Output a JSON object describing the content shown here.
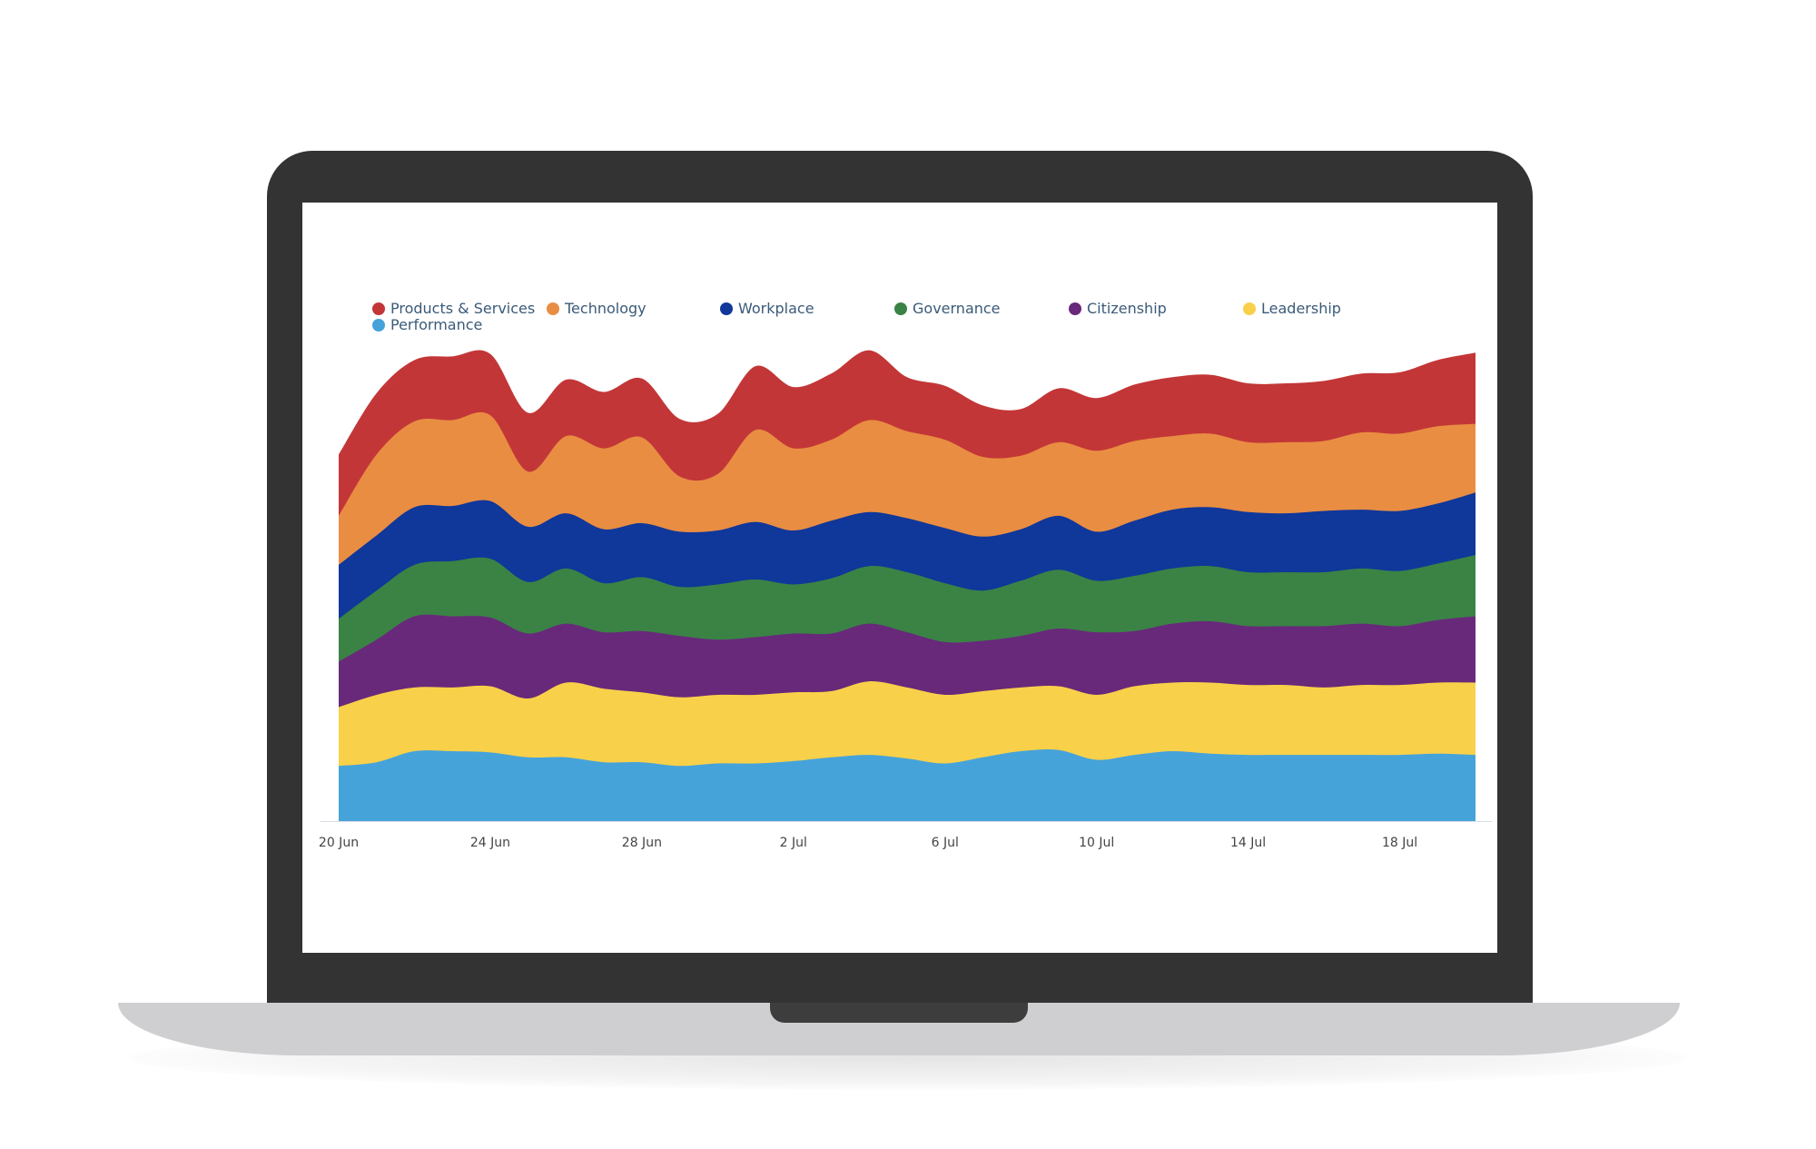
{
  "chart_data": {
    "type": "area",
    "stacked": true,
    "x": [
      "20 Jun",
      "21 Jun",
      "22 Jun",
      "23 Jun",
      "24 Jun",
      "25 Jun",
      "26 Jun",
      "27 Jun",
      "28 Jun",
      "29 Jun",
      "30 Jun",
      "1 Jul",
      "2 Jul",
      "3 Jul",
      "4 Jul",
      "5 Jul",
      "6 Jul",
      "7 Jul",
      "8 Jul",
      "9 Jul",
      "10 Jul",
      "11 Jul",
      "12 Jul",
      "13 Jul",
      "14 Jul",
      "15 Jul",
      "16 Jul",
      "17 Jul",
      "18 Jul",
      "19 Jul",
      "20 Jul"
    ],
    "x_ticks": [
      "20 Jun",
      "24 Jun",
      "28 Jun",
      "2 Jul",
      "6 Jul",
      "10 Jul",
      "14 Jul",
      "18 Jul"
    ],
    "series": [
      {
        "name": "Performance",
        "color": "#46a3da",
        "values": [
          45,
          48,
          57,
          57,
          56,
          52,
          52,
          48,
          48,
          45,
          47,
          47,
          49,
          52,
          54,
          51,
          47,
          52,
          57,
          58,
          50,
          54,
          57,
          55,
          54,
          54,
          54,
          54,
          54,
          55,
          54
        ]
      },
      {
        "name": "Leadership",
        "color": "#f8d04a",
        "values": [
          48,
          55,
          52,
          52,
          54,
          48,
          61,
          60,
          57,
          56,
          56,
          56,
          56,
          54,
          60,
          58,
          56,
          54,
          52,
          52,
          53,
          56,
          56,
          58,
          57,
          57,
          55,
          57,
          57,
          58,
          59
        ]
      },
      {
        "name": "Citizenship",
        "color": "#68297a",
        "values": [
          37,
          45,
          58,
          58,
          56,
          53,
          48,
          46,
          50,
          50,
          45,
          47,
          48,
          47,
          47,
          45,
          43,
          41,
          42,
          47,
          51,
          45,
          48,
          50,
          48,
          48,
          50,
          50,
          48,
          51,
          54
        ]
      },
      {
        "name": "Governance",
        "color": "#3a8345",
        "values": [
          35,
          40,
          42,
          45,
          48,
          42,
          45,
          40,
          44,
          40,
          45,
          47,
          40,
          45,
          47,
          49,
          48,
          41,
          45,
          48,
          42,
          45,
          45,
          45,
          44,
          44,
          44,
          45,
          45,
          46,
          50
        ]
      },
      {
        "name": "Workplace",
        "color": "#10379a",
        "values": [
          44,
          45,
          47,
          45,
          47,
          45,
          45,
          44,
          44,
          45,
          44,
          47,
          44,
          47,
          44,
          44,
          45,
          44,
          42,
          44,
          40,
          45,
          48,
          48,
          49,
          48,
          50,
          48,
          49,
          49,
          51
        ]
      },
      {
        "name": "Technology",
        "color": "#e98d42",
        "values": [
          40,
          66,
          70,
          70,
          70,
          45,
          63,
          66,
          70,
          45,
          46,
          75,
          67,
          66,
          75,
          71,
          72,
          65,
          60,
          60,
          66,
          65,
          60,
          60,
          57,
          58,
          57,
          63,
          63,
          63,
          56
        ]
      },
      {
        "name": "Products & Services",
        "color": "#c33637",
        "values": [
          50,
          50,
          50,
          52,
          50,
          48,
          46,
          46,
          48,
          47,
          49,
          52,
          50,
          54,
          57,
          44,
          44,
          42,
          38,
          44,
          43,
          46,
          48,
          48,
          48,
          48,
          49,
          48,
          50,
          54,
          58
        ]
      }
    ],
    "legend": {
      "position": "top-left",
      "items": [
        {
          "label": "Products & Services",
          "color": "#c33637"
        },
        {
          "label": "Technology",
          "color": "#e98d42"
        },
        {
          "label": "Workplace",
          "color": "#10379a"
        },
        {
          "label": "Governance",
          "color": "#3a8345"
        },
        {
          "label": "Citizenship",
          "color": "#68297a"
        },
        {
          "label": "Leadership",
          "color": "#f8d04a"
        },
        {
          "label": "Performance",
          "color": "#46a3da"
        }
      ]
    },
    "ylim": [
      0,
      400
    ],
    "grid": false
  }
}
